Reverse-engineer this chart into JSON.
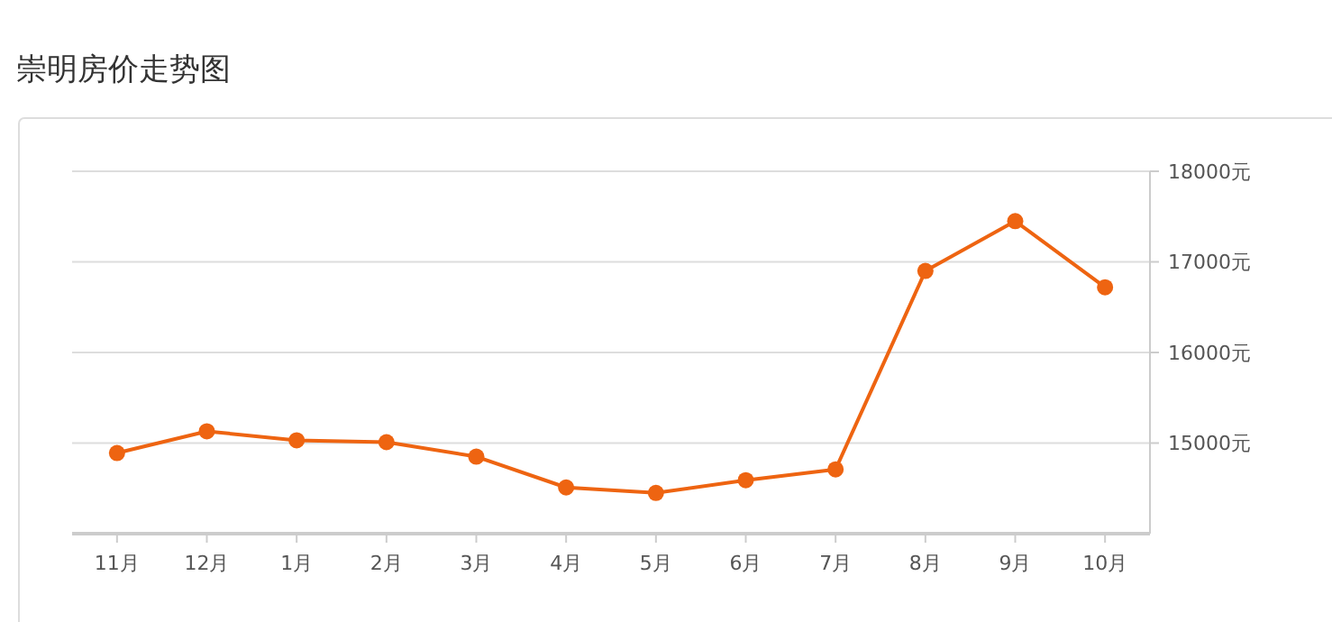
{
  "chart_data": {
    "type": "line",
    "title": "崇明房价走势图",
    "categories": [
      "11月",
      "12月",
      "1月",
      "2月",
      "3月",
      "4月",
      "5月",
      "6月",
      "7月",
      "8月",
      "9月",
      "10月"
    ],
    "series": [
      {
        "color": "#ee6411",
        "values": [
          14890,
          15130,
          15030,
          15010,
          14850,
          14510,
          14450,
          14590,
          14710,
          16900,
          17450,
          16720
        ]
      }
    ],
    "ylim": [
      14000,
      18000
    ],
    "yticks": [
      {
        "value": 15000,
        "label": "15000元"
      },
      {
        "value": 16000,
        "label": "16000元"
      },
      {
        "value": 17000,
        "label": "17000元"
      },
      {
        "value": 18000,
        "label": "18000元"
      }
    ],
    "grid": "y",
    "marker": "circle",
    "line_style": "solid"
  }
}
